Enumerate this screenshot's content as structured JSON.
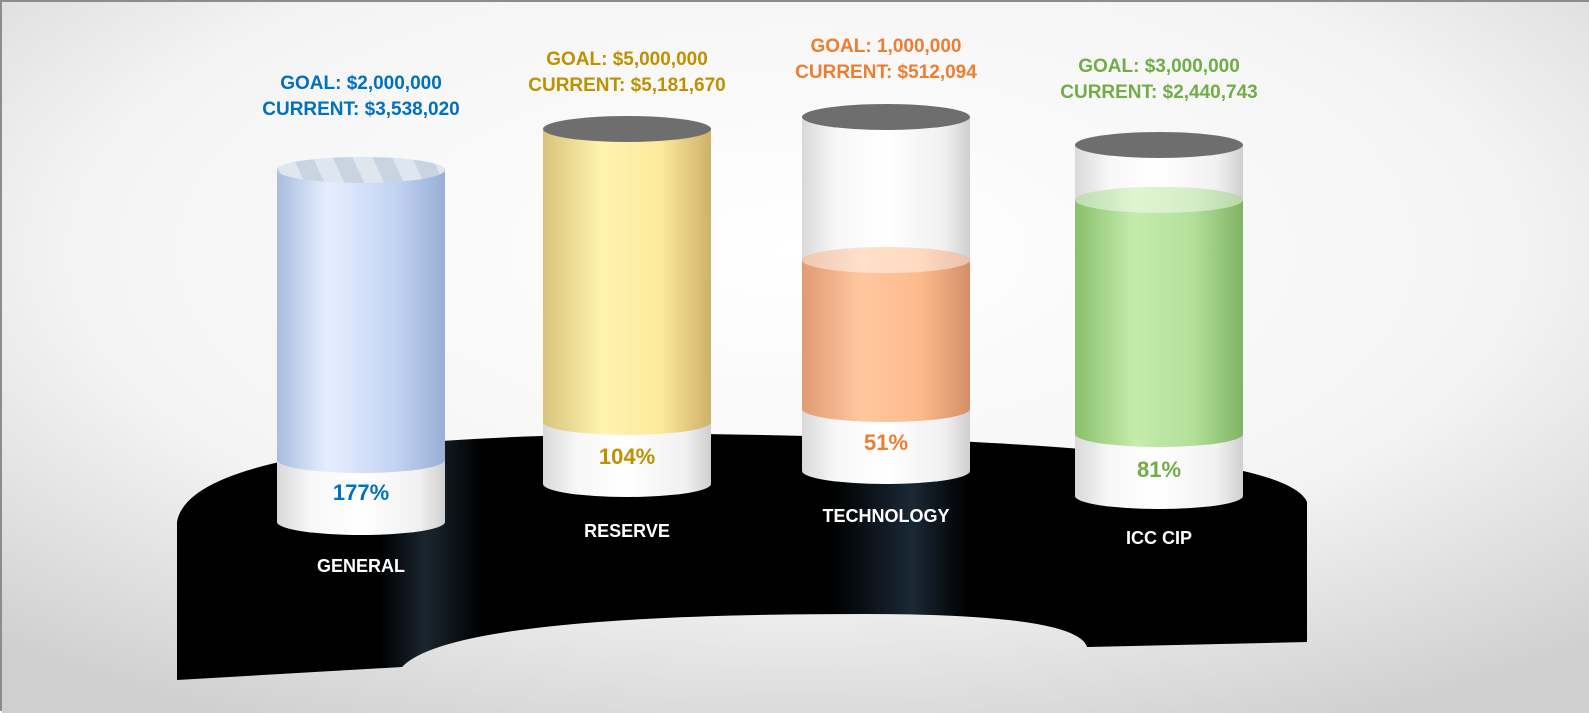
{
  "chart_data": {
    "type": "bar",
    "style": "3d-cylinder-thermometer",
    "categories": [
      "GENERAL",
      "RESERVE",
      "TECHNOLOGY",
      "ICC CIP"
    ],
    "goal_labels": [
      "GOAL: $2,000,000",
      "GOAL: $5,000,000",
      "GOAL: 1,000,000",
      "GOAL: $3,000,000"
    ],
    "current_labels": [
      "CURRENT: $3,538,020",
      "CURRENT: $5,181,670",
      "CURRENT: $512,094",
      "CURRENT: $2,440,743"
    ],
    "percent_labels": [
      "177%",
      "104%",
      "51%",
      "81%"
    ],
    "goals": [
      2000000,
      5000000,
      1000000,
      3000000
    ],
    "current": [
      3538020,
      5181670,
      512094,
      2440743
    ],
    "percent_of_goal": [
      177,
      104,
      51,
      81
    ],
    "ylim": [
      0,
      100
    ],
    "colors": [
      "#0070c0",
      "#bf9000",
      "#ed7d31",
      "#70ad47"
    ],
    "fill_colors": [
      "#c5d6f5",
      "#fde99a",
      "#ffba8c",
      "#b3e09a"
    ],
    "base_color": "#000000",
    "grid": false,
    "legend": "none"
  }
}
